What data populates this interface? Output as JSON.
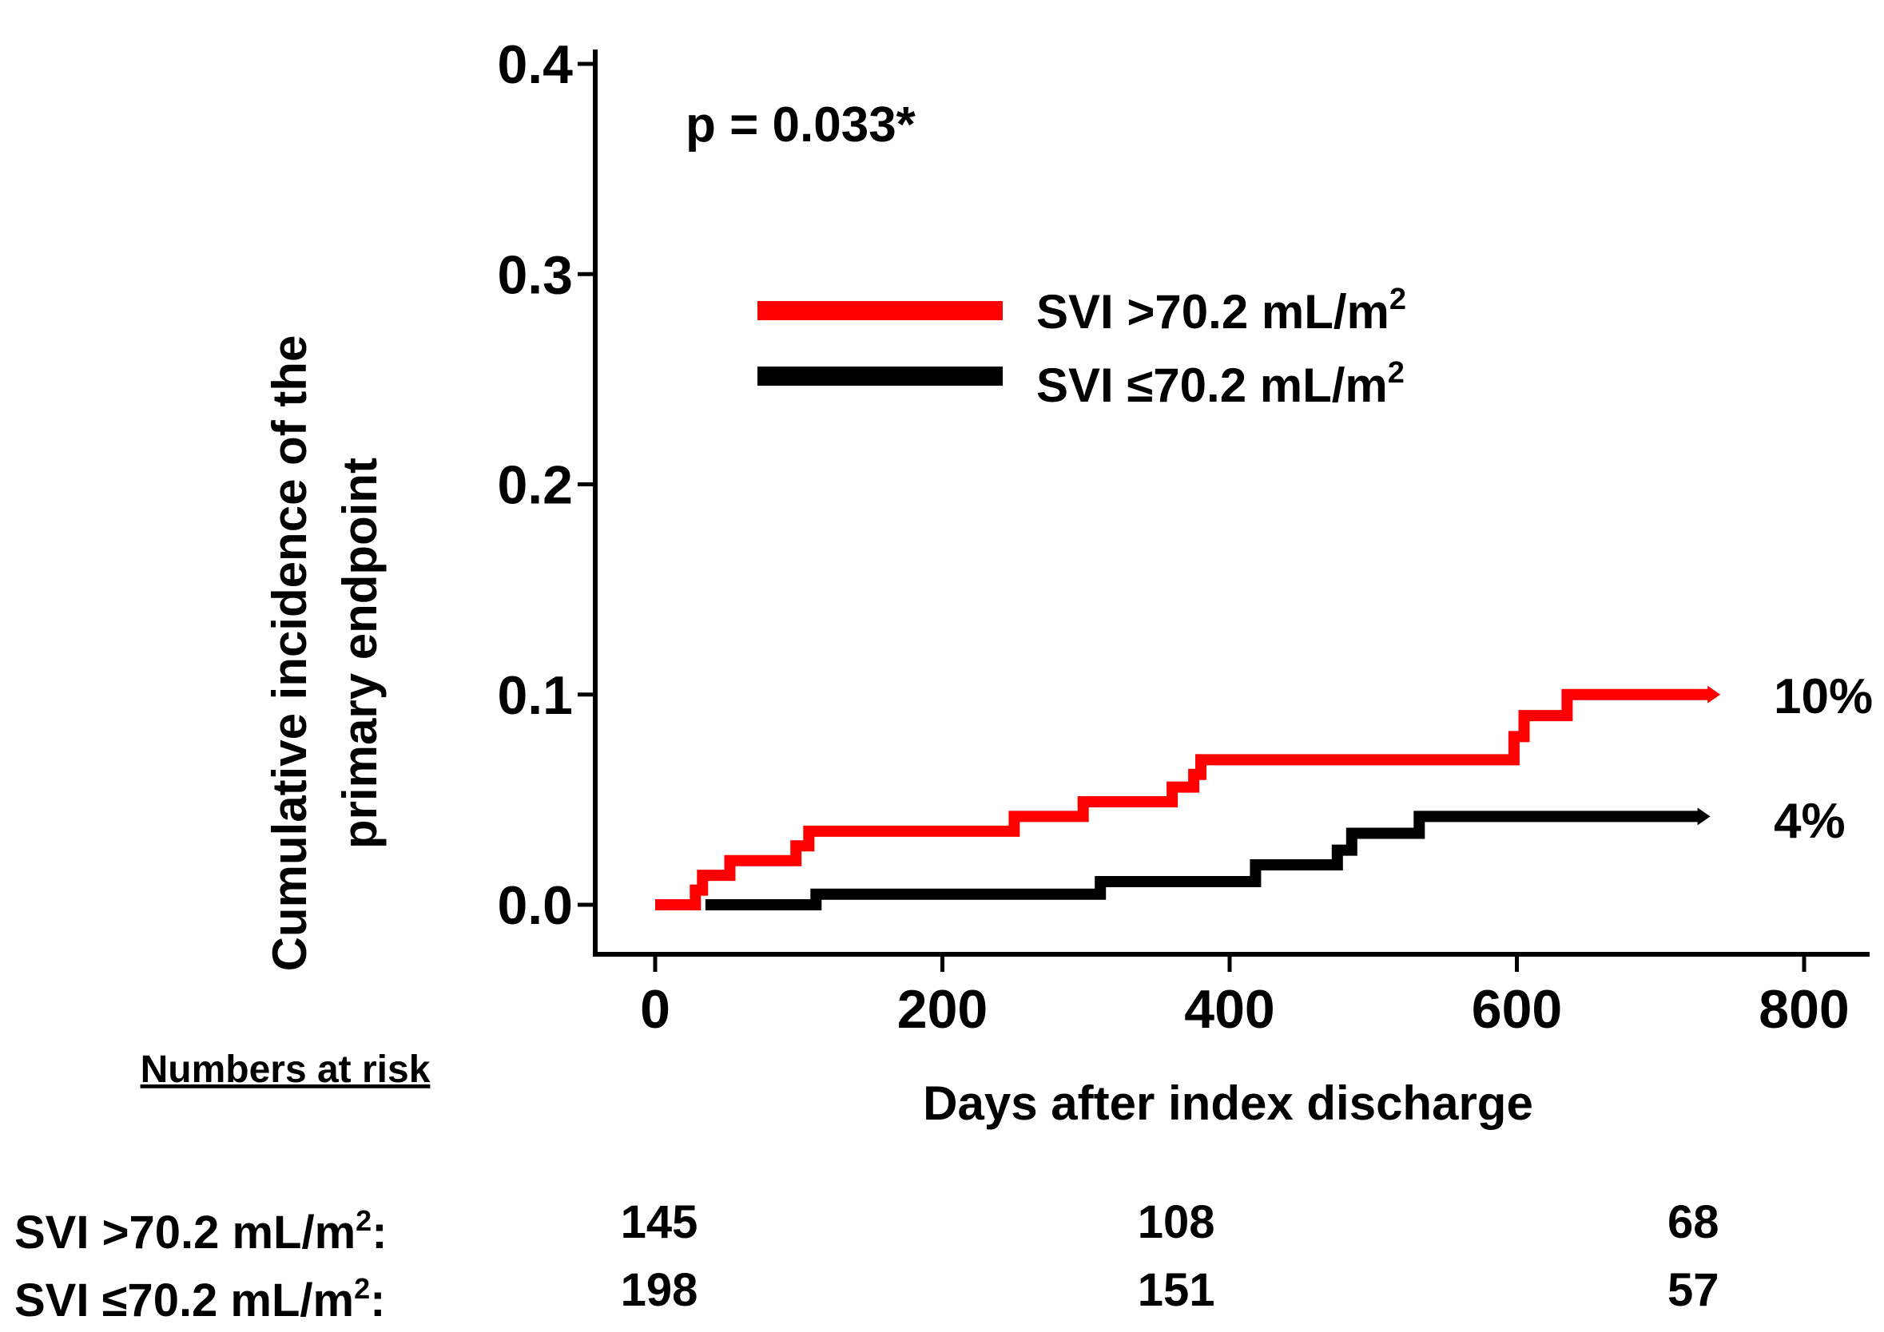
{
  "chart_data": {
    "type": "line",
    "step": true,
    "xlabel": "Days after index discharge",
    "ylabel": [
      "Cumulative incidence of the",
      "primary endpoint"
    ],
    "xlim": [
      0,
      800
    ],
    "ylim": [
      0,
      0.4
    ],
    "x_ticks": [
      "0",
      "200",
      "400",
      "600",
      "800"
    ],
    "y_ticks": [
      "0.0",
      "0.1",
      "0.2",
      "0.3",
      "0.4"
    ],
    "annotation": "p = 0.033*",
    "legend_placement": "upper-center",
    "series": [
      {
        "name": "SVI >70.2 mL/m",
        "name_sup": "2",
        "color": "#ff0000",
        "end_label": "10%",
        "points": [
          [
            0,
            0
          ],
          [
            28,
            0
          ],
          [
            28,
            0.007
          ],
          [
            33,
            0.007
          ],
          [
            33,
            0.014
          ],
          [
            52,
            0.014
          ],
          [
            52,
            0.021
          ],
          [
            98,
            0.021
          ],
          [
            98,
            0.028
          ],
          [
            107,
            0.028
          ],
          [
            107,
            0.035
          ],
          [
            250,
            0.035
          ],
          [
            250,
            0.042
          ],
          [
            298,
            0.042
          ],
          [
            298,
            0.049
          ],
          [
            360,
            0.049
          ],
          [
            360,
            0.056
          ],
          [
            375,
            0.056
          ],
          [
            375,
            0.062
          ],
          [
            380,
            0.062
          ],
          [
            380,
            0.069
          ],
          [
            598,
            0.069
          ],
          [
            598,
            0.08
          ],
          [
            605,
            0.08
          ],
          [
            605,
            0.09
          ],
          [
            635,
            0.09
          ],
          [
            635,
            0.1
          ],
          [
            735,
            0.1
          ]
        ]
      },
      {
        "name": "SVI ≤70.2 mL/m",
        "name_sup": "2",
        "color": "#000000",
        "end_label": "4%",
        "points": [
          [
            35,
            0
          ],
          [
            112,
            0
          ],
          [
            112,
            0.005
          ],
          [
            310,
            0.005
          ],
          [
            310,
            0.011
          ],
          [
            418,
            0.011
          ],
          [
            418,
            0.019
          ],
          [
            475,
            0.019
          ],
          [
            475,
            0.026
          ],
          [
            485,
            0.026
          ],
          [
            485,
            0.034
          ],
          [
            532,
            0.034
          ],
          [
            532,
            0.042
          ],
          [
            728,
            0.042
          ]
        ]
      }
    ],
    "risk_table": {
      "header": "Numbers at risk",
      "timepoints": [
        0,
        360,
        720
      ],
      "rows": [
        {
          "label": "SVI >70.2 mL/m",
          "sup": "2",
          "suffix": ":",
          "values": [
            "145",
            "108",
            "68"
          ]
        },
        {
          "label": "SVI ≤70.2 mL/m",
          "sup": "2",
          "suffix": ":",
          "values": [
            "198",
            "151",
            "57"
          ]
        }
      ]
    }
  }
}
